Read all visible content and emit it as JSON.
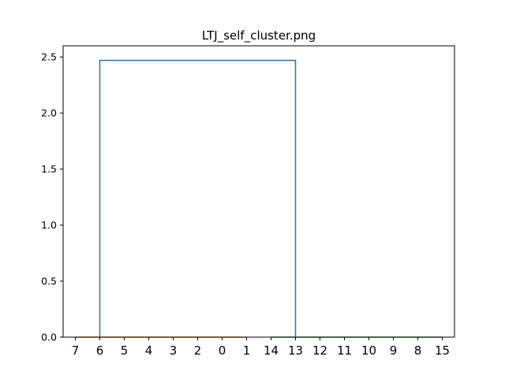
{
  "chart_data": {
    "type": "dendrogram",
    "title": "LTJ_self_cluster.png",
    "xlabel": "",
    "ylabel": "",
    "leaf_order": [
      "7",
      "6",
      "5",
      "4",
      "3",
      "2",
      "0",
      "1",
      "14",
      "13",
      "12",
      "11",
      "10",
      "9",
      "8",
      "15"
    ],
    "ylim": [
      0.0,
      2.6
    ],
    "yticks": [
      "0.0",
      "0.5",
      "1.0",
      "1.5",
      "2.0",
      "2.5"
    ],
    "grid": false,
    "clusters": [
      {
        "leaves": [
          "7",
          "6",
          "5",
          "4",
          "3",
          "2",
          "0",
          "1"
        ],
        "merge_height": 0.0,
        "color": "#ff7f0e"
      },
      {
        "leaves": [
          "14",
          "13",
          "12",
          "11",
          "10",
          "9",
          "8",
          "15"
        ],
        "merge_height": 0.0,
        "color": "#2ca02c"
      }
    ],
    "root_merge": {
      "height": 2.47,
      "left_leaf": "6",
      "right_leaf": "13",
      "color": "#1f77b4"
    }
  }
}
